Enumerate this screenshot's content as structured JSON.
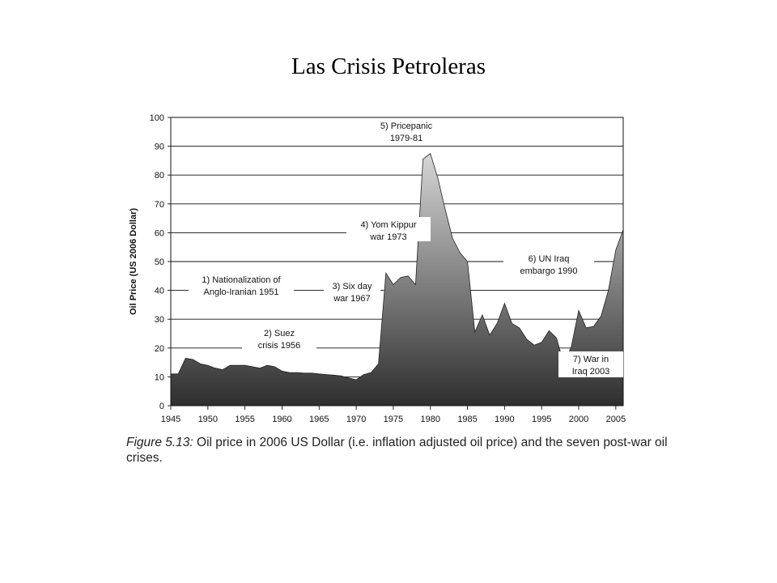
{
  "slide": {
    "title": "Las Crisis Petroleras"
  },
  "caption": {
    "figure_label": "Figure 5.13:",
    "text": " Oil price in 2006 US Dollar (i.e. inflation adjusted oil price) and the seven post-war oil crises."
  },
  "chart_data": {
    "type": "area",
    "title": "",
    "xlabel": "",
    "ylabel": "Oil Price (US 2006 Dollar)",
    "xlim": [
      1945,
      2006
    ],
    "ylim": [
      0,
      100
    ],
    "x_ticks": [
      1945,
      1950,
      1955,
      1960,
      1965,
      1970,
      1975,
      1980,
      1985,
      1990,
      1995,
      2000,
      2005
    ],
    "y_ticks": [
      0,
      10,
      20,
      30,
      40,
      50,
      60,
      70,
      80,
      90,
      100
    ],
    "grid": "horizontal",
    "legend": "none",
    "fill_colors": {
      "top": "#d6d6d6",
      "bottom": "#2e2e2e"
    },
    "series": [
      {
        "x": [
          1945,
          1946,
          1947,
          1948,
          1949,
          1950,
          1951,
          1952,
          1953,
          1954,
          1955,
          1956,
          1957,
          1958,
          1959,
          1960,
          1961,
          1962,
          1963,
          1964,
          1965,
          1966,
          1967,
          1968,
          1969,
          1970,
          1971,
          1972,
          1973,
          1974,
          1975,
          1976,
          1977,
          1978,
          1979,
          1980,
          1981,
          1982,
          1983,
          1984,
          1985,
          1986,
          1987,
          1988,
          1989,
          1990,
          1991,
          1992,
          1993,
          1994,
          1995,
          1996,
          1997,
          1998,
          1999,
          2000,
          2001,
          2002,
          2003,
          2004,
          2005,
          2006
        ],
        "values": [
          11,
          11,
          16.5,
          16,
          14.5,
          14,
          13,
          12.5,
          14,
          14,
          14,
          13.5,
          13,
          14,
          13.5,
          12,
          11.5,
          11.5,
          11.3,
          11.3,
          11,
          10.8,
          10.6,
          10.3,
          9.6,
          9,
          10.8,
          11.5,
          14.5,
          46,
          42,
          44.5,
          45,
          42,
          85.5,
          87.5,
          79,
          68,
          58,
          53,
          50,
          25.5,
          31.5,
          24.5,
          28.5,
          35.5,
          28.5,
          27,
          23,
          21,
          22,
          26,
          23.5,
          14.5,
          20.5,
          33,
          27,
          27.5,
          31,
          40,
          54,
          61
        ]
      }
    ],
    "annotations": [
      {
        "text": [
          "1) Nationalization of",
          "Anglo-Iranian 1951"
        ]
      },
      {
        "text": [
          "2) Suez",
          "crisis 1956"
        ]
      },
      {
        "text": [
          "3) Six day",
          "war 1967"
        ]
      },
      {
        "text": [
          "4) Yom Kippur",
          "war 1973"
        ]
      },
      {
        "text": [
          "5) Pricepanic",
          "1979-81"
        ]
      },
      {
        "text": [
          "6) UN Iraq",
          "embargo 1990"
        ]
      },
      {
        "text": [
          "7) War in",
          "Iraq 2003"
        ]
      }
    ]
  }
}
